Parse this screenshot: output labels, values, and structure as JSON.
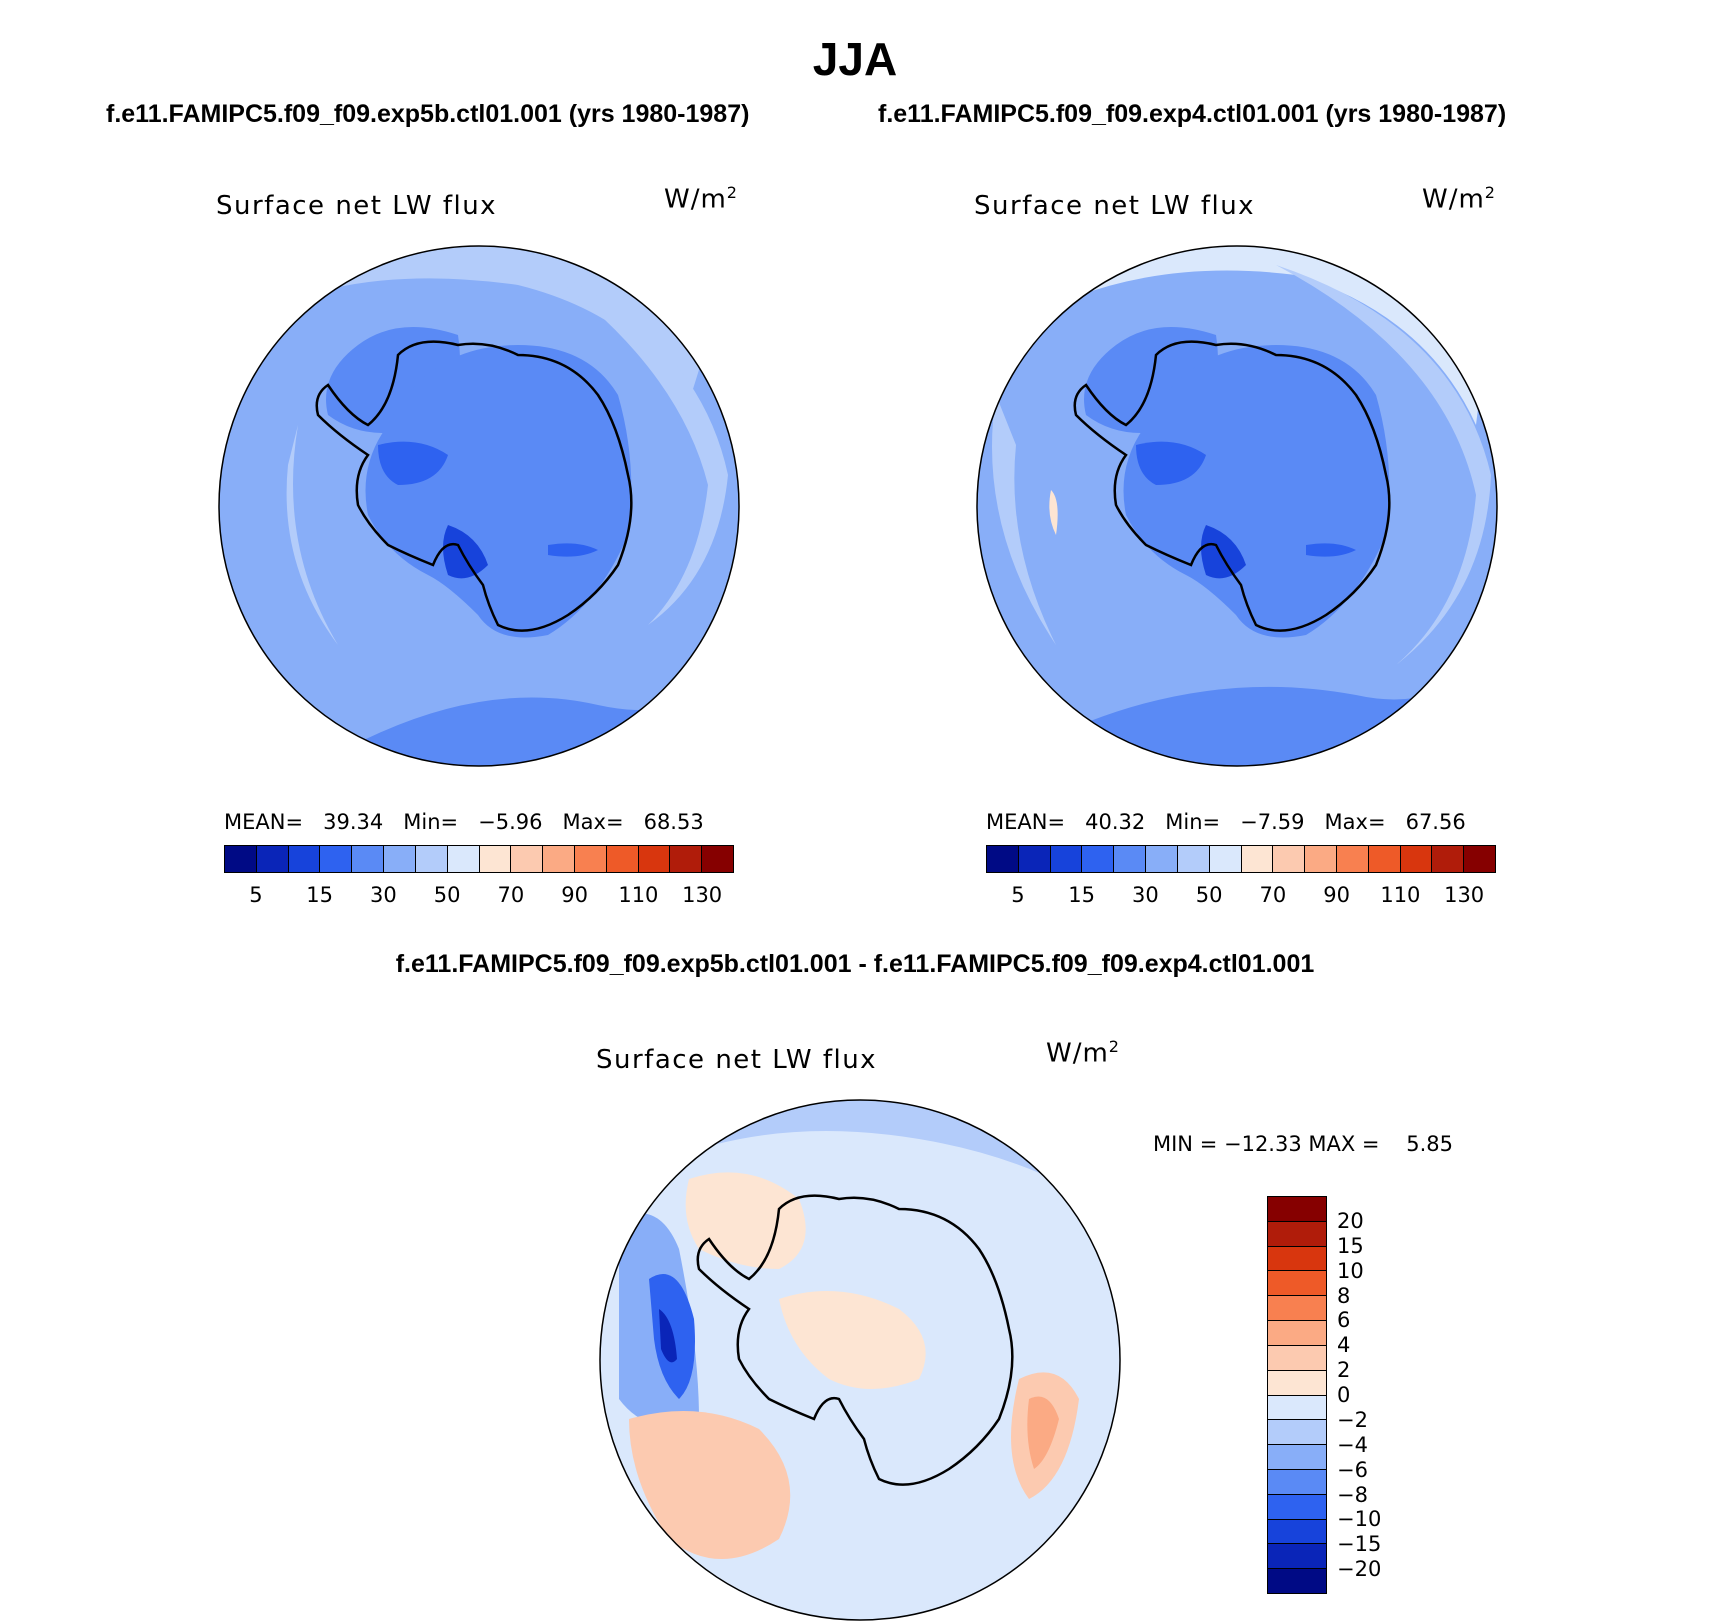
{
  "title": "JJA",
  "case1_title": "f.e11.FAMIPC5.f09_f09.exp5b.ctl01.001 (yrs 1980-1987)",
  "case2_title": "f.e11.FAMIPC5.f09_f09.exp4.ctl01.001 (yrs 1980-1987)",
  "diff_title": "f.e11.FAMIPC5.f09_f09.exp5b.ctl01.001 - f.e11.FAMIPC5.f09_f09.exp4.ctl01.001",
  "variable": "Surface net LW flux",
  "units_base": "W/m",
  "units_exp": "2",
  "panels": [
    {
      "mean_label": "MEAN=",
      "mean": "39.34",
      "min_label": "Min=",
      "min": "−5.96",
      "max_label": "Max=",
      "max": "68.53"
    },
    {
      "mean_label": "MEAN=",
      "mean": "40.32",
      "min_label": "Min=",
      "min": "−7.59",
      "max_label": "Max=",
      "max": "67.56"
    }
  ],
  "diff_stats": {
    "min_label": "MIN =",
    "min": "−12.33",
    "max_label": "MAX =",
    "max": "5.85"
  },
  "colorbar_main": {
    "colors": [
      "#000a85",
      "#0a25b8",
      "#1743db",
      "#2e62f0",
      "#5a8af5",
      "#88aef8",
      "#b3ccfa",
      "#dae8fc",
      "#fde5d3",
      "#fccab0",
      "#fbaa84",
      "#f88050",
      "#ee5a28",
      "#d8360e",
      "#b01c0a",
      "#860000"
    ],
    "tick_labels": [
      "5",
      "15",
      "30",
      "50",
      "70",
      "90",
      "110",
      "130"
    ]
  },
  "colorbar_diff": {
    "colors": [
      "#860000",
      "#b01c0a",
      "#d8360e",
      "#ee5a28",
      "#f88050",
      "#fbaa84",
      "#fccab0",
      "#fde5d3",
      "#dae8fc",
      "#b3ccfa",
      "#88aef8",
      "#5a8af5",
      "#2e62f0",
      "#1743db",
      "#0a25b8",
      "#000a85"
    ],
    "tick_labels": [
      "20",
      "15",
      "10",
      "8",
      "6",
      "4",
      "2",
      "0",
      "−2",
      "−4",
      "−6",
      "−8",
      "−10",
      "−15",
      "−20"
    ]
  }
}
